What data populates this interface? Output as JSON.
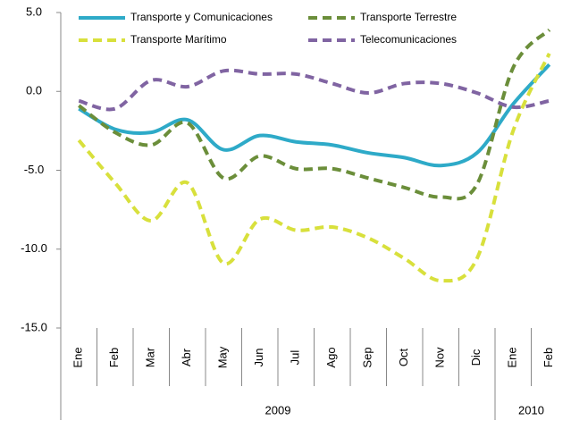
{
  "chart_data": {
    "type": "line",
    "category_groups": [
      {
        "label": "2009",
        "categories": [
          "Ene",
          "Feb",
          "Mar",
          "Abr",
          "May",
          "Jun",
          "Jul",
          "Ago",
          "Sep",
          "Oct",
          "Nov",
          "Dic"
        ]
      },
      {
        "label": "2010",
        "categories": [
          "Ene",
          "Feb"
        ]
      }
    ],
    "series": [
      {
        "name": "Transporte y Comunicaciones",
        "color": "#2eaac8",
        "dashed": false,
        "values": [
          -1.1,
          -2.4,
          -2.6,
          -1.8,
          -3.7,
          -2.8,
          -3.2,
          -3.4,
          -3.9,
          -4.2,
          -4.7,
          -3.9,
          -0.8,
          1.7
        ]
      },
      {
        "name": "Transporte Terrestre",
        "color": "#6b8e3a",
        "dashed": true,
        "values": [
          -0.9,
          -2.6,
          -3.4,
          -2.0,
          -5.5,
          -4.1,
          -4.9,
          -4.9,
          -5.5,
          -6.1,
          -6.7,
          -5.9,
          1.5,
          3.9
        ]
      },
      {
        "name": "Transporte Marítimo",
        "color": "#d8e03c",
        "dashed": true,
        "values": [
          -3.1,
          -5.8,
          -8.2,
          -5.8,
          -10.9,
          -8.1,
          -8.8,
          -8.6,
          -9.3,
          -10.6,
          -12.0,
          -10.6,
          -2.5,
          2.4
        ]
      },
      {
        "name": "Telecomunicaciones",
        "color": "#8064a2",
        "dashed": true,
        "values": [
          -0.6,
          -1.1,
          0.7,
          0.3,
          1.3,
          1.1,
          1.1,
          0.5,
          -0.1,
          0.5,
          0.5,
          -0.1,
          -1.0,
          -0.6
        ]
      }
    ],
    "ylim": [
      -15,
      5
    ],
    "yticks": [
      {
        "value": -15,
        "label": "-15.0"
      },
      {
        "value": -10,
        "label": "-10.0"
      },
      {
        "value": -5,
        "label": "-5.0"
      },
      {
        "value": 0,
        "label": "0.0"
      },
      {
        "value": 5,
        "label": "5.0"
      }
    ],
    "smooth": true
  }
}
